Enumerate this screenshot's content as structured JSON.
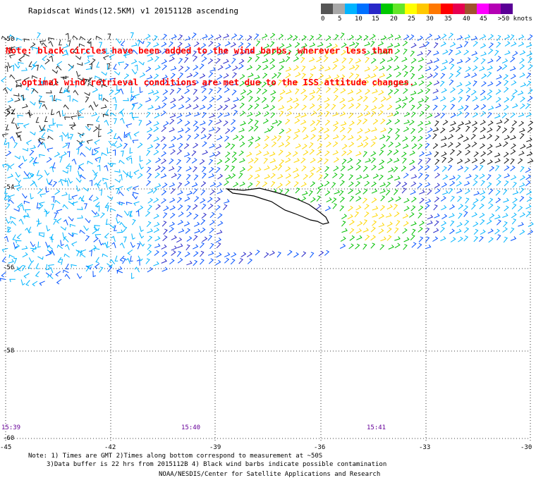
{
  "title": "Rapidscat Winds(12.5KM) v1 2015112B ascending",
  "note_lines": [
    "Note: black circles have been added to the wind barbs, wherever less than",
    "   optimal wind retrieval conditions are met due to the ISS attitude changes."
  ],
  "legend": {
    "colors": [
      "#555555",
      "#a8a8a8",
      "#00b4ff",
      "#0070ff",
      "#2828c8",
      "#00c800",
      "#64e628",
      "#ffff00",
      "#ffc800",
      "#ff7800",
      "#ff0000",
      "#e60050",
      "#a0522d",
      "#ff00ff",
      "#b400b4",
      "#5a0096"
    ],
    "labels": [
      "0",
      "5",
      "10",
      "15",
      "20",
      "25",
      "30",
      "35",
      "40",
      "45",
      ">50 knots"
    ]
  },
  "latitudes": [
    "-50",
    "-52",
    "-54",
    "-56",
    "-58",
    "-60"
  ],
  "longitudes": [
    "-45",
    "-42",
    "-39",
    "-36",
    "-33",
    "-30"
  ],
  "times": [
    "15:39",
    "15:40",
    "15:41"
  ],
  "footer": {
    "line1": "Note: 1) Times are GMT 2)Times along bottom correspond to measurement at ~50S",
    "line2": "3)Data buffer is 22 hrs from 2015112B 4) Black wind barbs indicate possible contamination",
    "credit": "NOAA/NESDIS/Center for Satellite Applications and Research"
  }
}
